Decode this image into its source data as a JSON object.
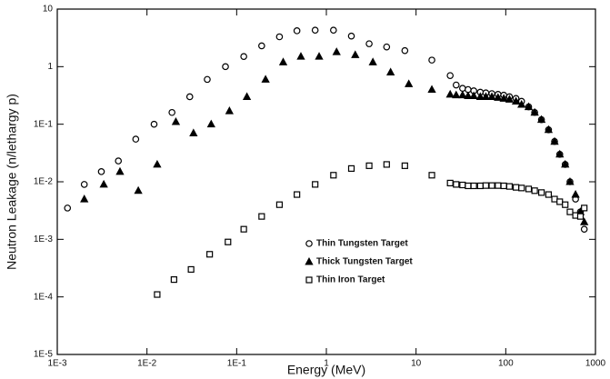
{
  "chart_data": {
    "type": "scatter",
    "xlabel": "Energy (MeV)",
    "ylabel": "Neutron Leakage (n/lethargy p)",
    "xscale": "log",
    "yscale": "log",
    "xlim": [
      0.001,
      1000
    ],
    "ylim": [
      1e-05,
      10
    ],
    "xticks": [
      {
        "value": 0.001,
        "label": "1E-3"
      },
      {
        "value": 0.01,
        "label": "1E-2"
      },
      {
        "value": 0.1,
        "label": "1E-1"
      },
      1,
      10,
      100,
      1000
    ],
    "yticks": [
      {
        "value": 1e-05,
        "label": "1E-5"
      },
      {
        "value": 0.0001,
        "label": "1E-4"
      },
      {
        "value": 0.001,
        "label": "1E-3"
      },
      {
        "value": 0.01,
        "label": "1E-2"
      },
      {
        "value": 0.1,
        "label": "1E-1"
      },
      1,
      10
    ],
    "legend": "lower center",
    "series": [
      {
        "name": "Thin Tungsten Target",
        "color": "#000000",
        "marker": "circle",
        "x": [
          0.0013,
          0.002,
          0.0031,
          0.0048,
          0.0075,
          0.012,
          0.019,
          0.03,
          0.047,
          0.075,
          0.12,
          0.19,
          0.3,
          0.47,
          0.75,
          1.2,
          1.9,
          3,
          4.7,
          7.5,
          15,
          24,
          28,
          33,
          38,
          44,
          52,
          60,
          70,
          82,
          95,
          110,
          130,
          150,
          180,
          210,
          250,
          300,
          350,
          400,
          460,
          520,
          600,
          680,
          750
        ],
        "values": [
          0.0035,
          0.009,
          0.015,
          0.023,
          0.055,
          0.1,
          0.16,
          0.3,
          0.6,
          1,
          1.5,
          2.3,
          3.3,
          4.2,
          4.3,
          4.3,
          3.4,
          2.5,
          2.2,
          1.9,
          1.3,
          0.7,
          0.48,
          0.42,
          0.4,
          0.38,
          0.36,
          0.35,
          0.34,
          0.33,
          0.32,
          0.3,
          0.28,
          0.25,
          0.2,
          0.16,
          0.12,
          0.08,
          0.05,
          0.03,
          0.02,
          0.01,
          0.005,
          0.003,
          0.0015
        ]
      },
      {
        "name": "Thick Tungsten Target",
        "color": "#000000",
        "marker": "triangle",
        "x": [
          0.002,
          0.0033,
          0.005,
          0.008,
          0.013,
          0.021,
          0.033,
          0.052,
          0.083,
          0.13,
          0.21,
          0.33,
          0.52,
          0.83,
          1.3,
          2.1,
          3.3,
          5.2,
          8.3,
          15,
          24,
          28,
          33,
          38,
          44,
          52,
          60,
          70,
          82,
          95,
          110,
          130,
          150,
          180,
          210,
          250,
          300,
          350,
          400,
          460,
          520,
          600,
          680,
          750
        ],
        "values": [
          0.005,
          0.009,
          0.015,
          0.007,
          0.02,
          0.11,
          0.07,
          0.1,
          0.17,
          0.3,
          0.6,
          1.2,
          1.5,
          1.5,
          1.8,
          1.6,
          1.2,
          0.8,
          0.5,
          0.4,
          0.33,
          0.32,
          0.32,
          0.31,
          0.31,
          0.3,
          0.3,
          0.3,
          0.29,
          0.28,
          0.27,
          0.25,
          0.22,
          0.2,
          0.16,
          0.12,
          0.08,
          0.05,
          0.03,
          0.02,
          0.01,
          0.006,
          0.003,
          0.002
        ]
      },
      {
        "name": "Thin Iron Target",
        "color": "#000000",
        "marker": "square",
        "x": [
          0.013,
          0.02,
          0.031,
          0.05,
          0.08,
          0.12,
          0.19,
          0.3,
          0.47,
          0.75,
          1.2,
          1.9,
          3,
          4.7,
          7.5,
          15,
          24,
          28,
          33,
          38,
          44,
          52,
          60,
          70,
          82,
          95,
          110,
          130,
          150,
          180,
          210,
          250,
          300,
          350,
          400,
          460,
          520,
          600,
          680,
          750
        ],
        "values": [
          0.00011,
          0.0002,
          0.0003,
          0.00055,
          0.0009,
          0.0015,
          0.0025,
          0.004,
          0.006,
          0.009,
          0.013,
          0.017,
          0.019,
          0.02,
          0.019,
          0.013,
          0.0095,
          0.009,
          0.0088,
          0.0085,
          0.0085,
          0.0085,
          0.0086,
          0.0086,
          0.0086,
          0.0085,
          0.0083,
          0.008,
          0.0078,
          0.0075,
          0.007,
          0.0065,
          0.006,
          0.005,
          0.0045,
          0.004,
          0.003,
          0.0026,
          0.0025,
          0.0035
        ]
      }
    ]
  }
}
